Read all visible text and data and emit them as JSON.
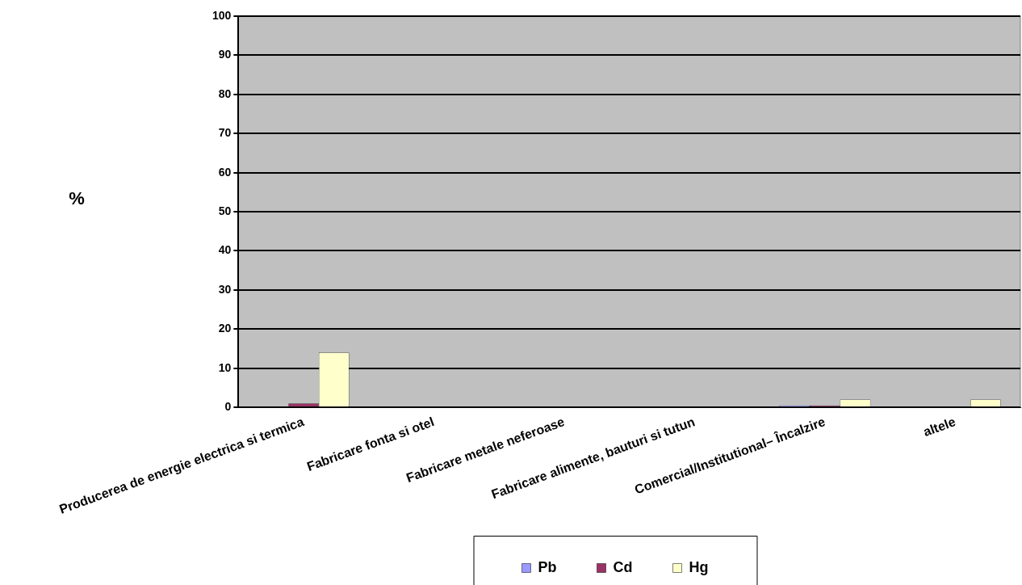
{
  "chart_data": {
    "type": "bar",
    "ylabel": "%",
    "categories": [
      "Producerea de energie electrica si termica",
      "Fabricare fonta si otel",
      "Fabricare metale neferoase",
      "Fabricare alimente, bauturi si tutun",
      "Comercial/Institutional– Încalzire",
      "altele"
    ],
    "series": [
      {
        "name": "Pb",
        "color": "#9999ff",
        "values": [
          0,
          0,
          0,
          0,
          0.5,
          0
        ]
      },
      {
        "name": "Cd",
        "color": "#993366",
        "values": [
          1,
          0,
          0,
          0,
          0.5,
          0
        ]
      },
      {
        "name": "Hg",
        "color": "#ffffcc",
        "values": [
          14,
          0,
          0,
          0,
          2,
          2
        ]
      }
    ],
    "ylim": [
      0,
      100
    ],
    "yticks": [
      0,
      10,
      20,
      30,
      40,
      50,
      60,
      70,
      80,
      90,
      100
    ],
    "grid": "y",
    "legend": "bottom"
  }
}
